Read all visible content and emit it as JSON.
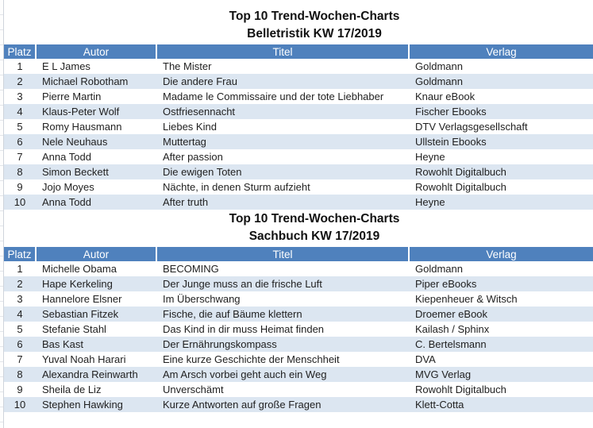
{
  "colors": {
    "header_bg": "#4F81BD",
    "header_text": "#FFFFFF",
    "row_band": "#DCE6F1"
  },
  "tables": [
    {
      "title_line1": "Top 10 Trend-Wochen-Charts",
      "title_line2": "Belletristik KW 17/2019",
      "columns": [
        "Platz",
        "Autor",
        "Titel",
        "Verlag"
      ],
      "rows": [
        [
          "1",
          "E L James",
          "The Mister",
          "Goldmann"
        ],
        [
          "2",
          "Michael Robotham",
          "Die andere Frau",
          "Goldmann"
        ],
        [
          "3",
          "Pierre Martin",
          "Madame le Commissaire und der tote Liebhaber",
          "Knaur eBook"
        ],
        [
          "4",
          "Klaus-Peter Wolf",
          "Ostfriesennacht",
          "Fischer Ebooks"
        ],
        [
          "5",
          "Romy Hausmann",
          "Liebes Kind",
          "DTV Verlagsgesellschaft"
        ],
        [
          "6",
          "Nele Neuhaus",
          "Muttertag",
          "Ullstein Ebooks"
        ],
        [
          "7",
          "Anna Todd",
          "After passion",
          "Heyne"
        ],
        [
          "8",
          "Simon Beckett",
          "Die ewigen Toten",
          "Rowohlt Digitalbuch"
        ],
        [
          "9",
          "Jojo Moyes",
          "Nächte, in denen Sturm aufzieht",
          "Rowohlt Digitalbuch"
        ],
        [
          "10",
          "Anna Todd",
          "After truth",
          "Heyne"
        ]
      ]
    },
    {
      "title_line1": "Top 10 Trend-Wochen-Charts",
      "title_line2": "Sachbuch KW 17/2019",
      "columns": [
        "Platz",
        "Autor",
        "Titel",
        "Verlag"
      ],
      "rows": [
        [
          "1",
          "Michelle Obama",
          "BECOMING",
          "Goldmann"
        ],
        [
          "2",
          "Hape Kerkeling",
          "Der Junge muss an die frische Luft",
          "Piper eBooks"
        ],
        [
          "3",
          "Hannelore Elsner",
          "Im Überschwang",
          "Kiepenheuer & Witsch"
        ],
        [
          "4",
          "Sebastian Fitzek",
          "Fische, die auf Bäume klettern",
          "Droemer eBook"
        ],
        [
          "5",
          "Stefanie Stahl",
          "Das Kind in dir muss Heimat finden",
          "Kailash / Sphinx"
        ],
        [
          "6",
          "Bas Kast",
          "Der Ernährungskompass",
          "C. Bertelsmann"
        ],
        [
          "7",
          "Yuval Noah Harari",
          "Eine kurze Geschichte der Menschheit",
          "DVA"
        ],
        [
          "8",
          "Alexandra Reinwarth",
          "Am Arsch vorbei geht auch ein Weg",
          "MVG Verlag"
        ],
        [
          "9",
          "Sheila de Liz",
          "Unverschämt",
          "Rowohlt Digitalbuch"
        ],
        [
          "10",
          "Stephen Hawking",
          "Kurze Antworten auf große Fragen",
          "Klett-Cotta"
        ]
      ]
    }
  ]
}
